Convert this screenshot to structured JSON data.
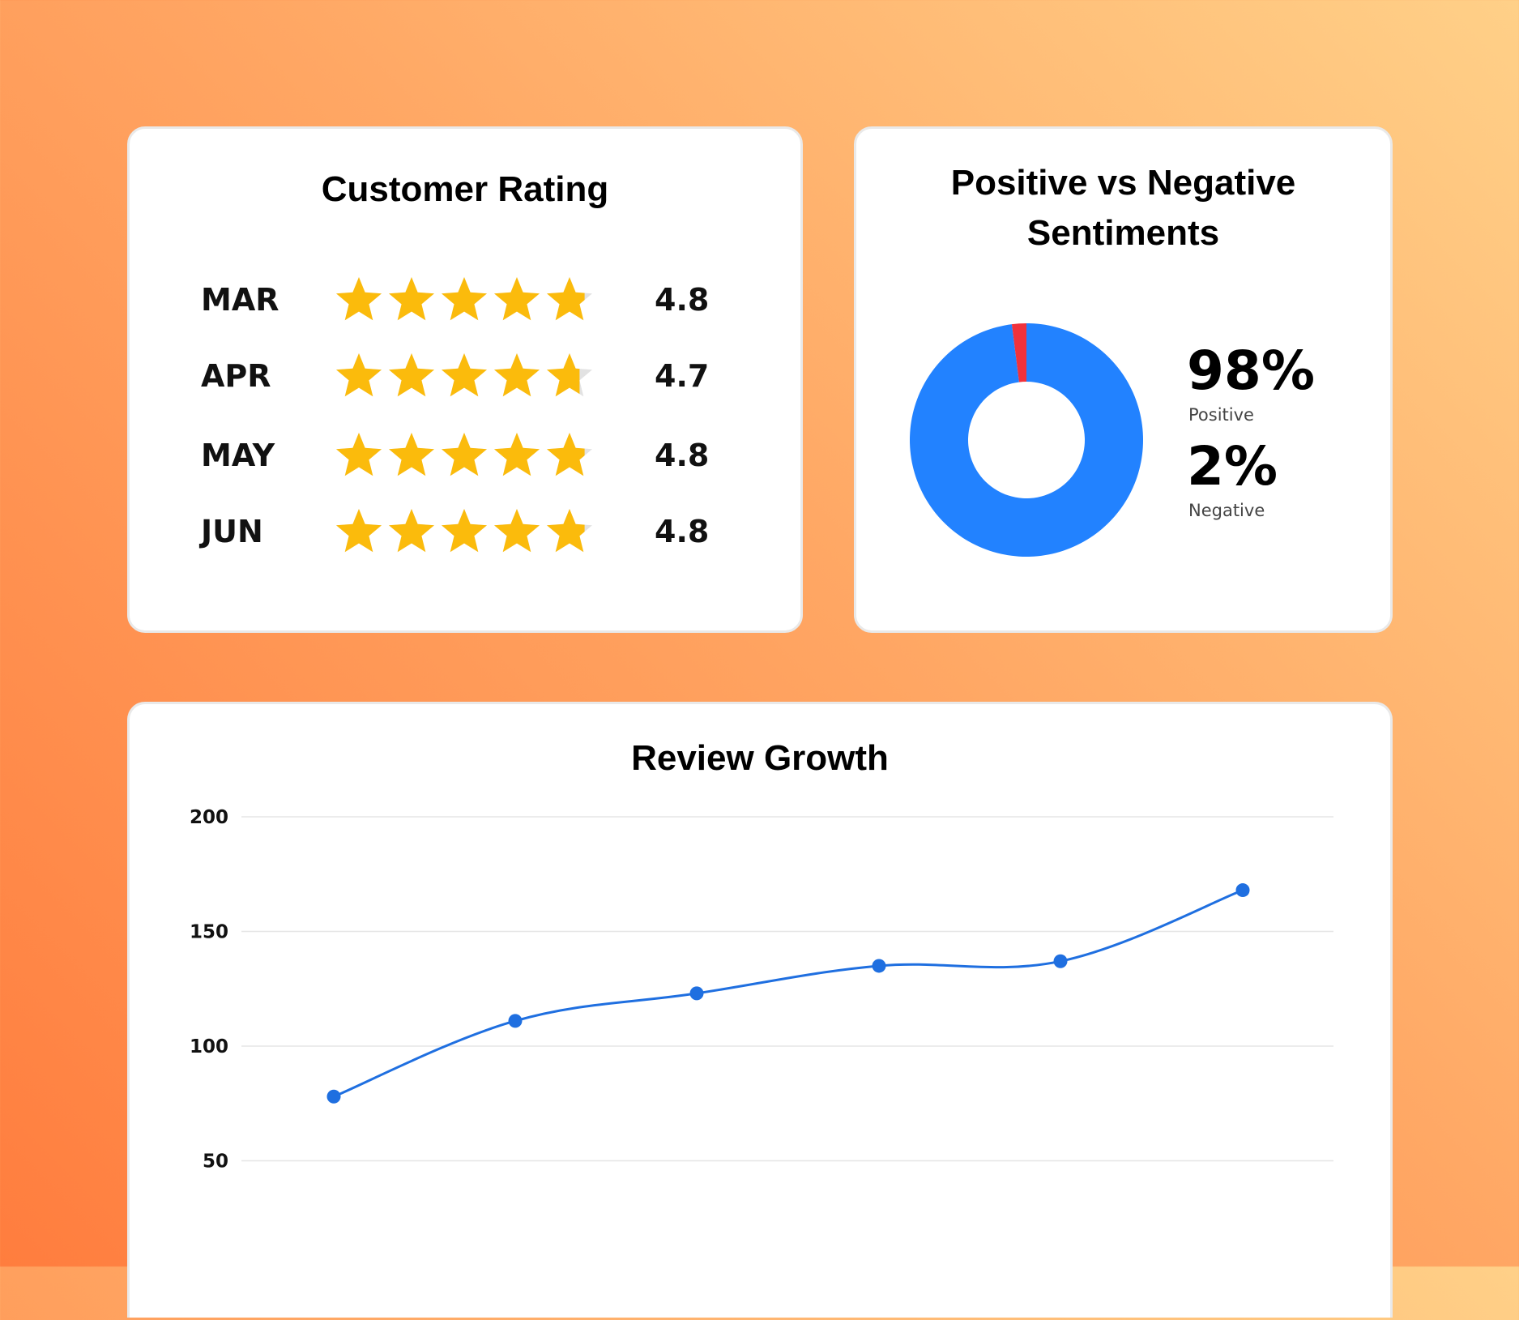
{
  "rating_card": {
    "title": "Customer Rating",
    "rows": [
      {
        "month": "MAR",
        "score": "4.8",
        "value": 4.8
      },
      {
        "month": "APR",
        "score": "4.7",
        "value": 4.7
      },
      {
        "month": "MAY",
        "score": "4.8",
        "value": 4.8
      },
      {
        "month": "JUN",
        "score": "4.8",
        "value": 4.8
      }
    ],
    "max_stars": 5,
    "star_color": "#fbbb0c"
  },
  "sentiment_card": {
    "title_line1": "Positive vs Negative",
    "title_line2": "Sentiments",
    "positive_pct": "98%",
    "positive_label": "Positive",
    "negative_pct": "2%",
    "negative_label": "Negative"
  },
  "chart_data": [
    {
      "type": "pie",
      "donut": true,
      "title": "Positive vs Negative Sentiments",
      "categories": [
        "Positive",
        "Negative"
      ],
      "values": [
        98,
        2
      ],
      "colors": [
        "#2282ff",
        "#f0323c"
      ]
    },
    {
      "type": "line",
      "title": "Review Growth",
      "x": [
        1,
        2,
        3,
        4,
        5,
        6
      ],
      "series": [
        {
          "values": [
            78,
            111,
            123,
            135,
            137,
            168
          ],
          "color": "#1f6fe0"
        }
      ],
      "yticks": [
        50,
        100,
        150,
        200
      ],
      "ylim": [
        0,
        200
      ],
      "grid": true
    }
  ]
}
